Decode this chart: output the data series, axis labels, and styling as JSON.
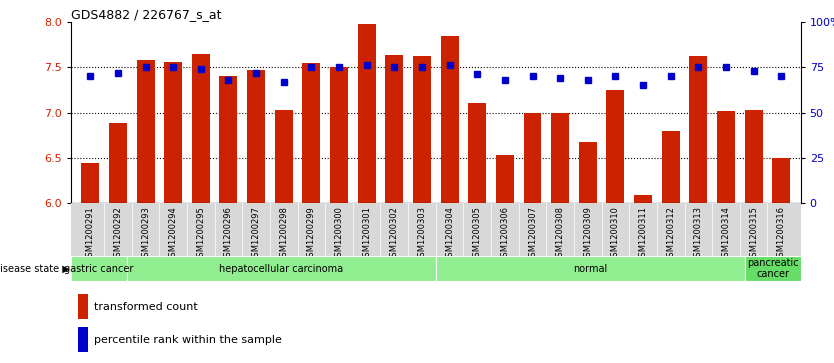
{
  "title": "GDS4882 / 226767_s_at",
  "samples": [
    "GSM1200291",
    "GSM1200292",
    "GSM1200293",
    "GSM1200294",
    "GSM1200295",
    "GSM1200296",
    "GSM1200297",
    "GSM1200298",
    "GSM1200299",
    "GSM1200300",
    "GSM1200301",
    "GSM1200302",
    "GSM1200303",
    "GSM1200304",
    "GSM1200305",
    "GSM1200306",
    "GSM1200307",
    "GSM1200308",
    "GSM1200309",
    "GSM1200310",
    "GSM1200311",
    "GSM1200312",
    "GSM1200313",
    "GSM1200314",
    "GSM1200315",
    "GSM1200316"
  ],
  "transformed_count": [
    6.44,
    6.88,
    7.58,
    7.56,
    7.64,
    7.4,
    7.47,
    7.03,
    7.55,
    7.5,
    7.98,
    7.63,
    7.62,
    7.84,
    7.1,
    6.53,
    7.0,
    7.0,
    6.67,
    7.25,
    6.09,
    6.8,
    7.62,
    7.02,
    7.03,
    6.5
  ],
  "percentile_rank": [
    70,
    72,
    75,
    75,
    74,
    68,
    72,
    67,
    75,
    75,
    76,
    75,
    75,
    76,
    71,
    68,
    70,
    69,
    68,
    70,
    65,
    70,
    75,
    75,
    73,
    70
  ],
  "groups": [
    {
      "label": "gastric cancer",
      "start": 0,
      "end": 2,
      "color": "#90ee90"
    },
    {
      "label": "hepatocellular carcinoma",
      "start": 2,
      "end": 13,
      "color": "#90ee90"
    },
    {
      "label": "normal",
      "start": 13,
      "end": 24,
      "color": "#90ee90"
    },
    {
      "label": "pancreatic\ncancer",
      "start": 24,
      "end": 26,
      "color": "#66dd66"
    }
  ],
  "ylim_left": [
    6.0,
    8.0
  ],
  "ylim_right": [
    0,
    100
  ],
  "yticks_left": [
    6.0,
    6.5,
    7.0,
    7.5,
    8.0
  ],
  "yticks_right": [
    0,
    25,
    50,
    75,
    100
  ],
  "bar_color": "#cc2200",
  "dot_color": "#0000cc",
  "bg_color": "#ffffff"
}
